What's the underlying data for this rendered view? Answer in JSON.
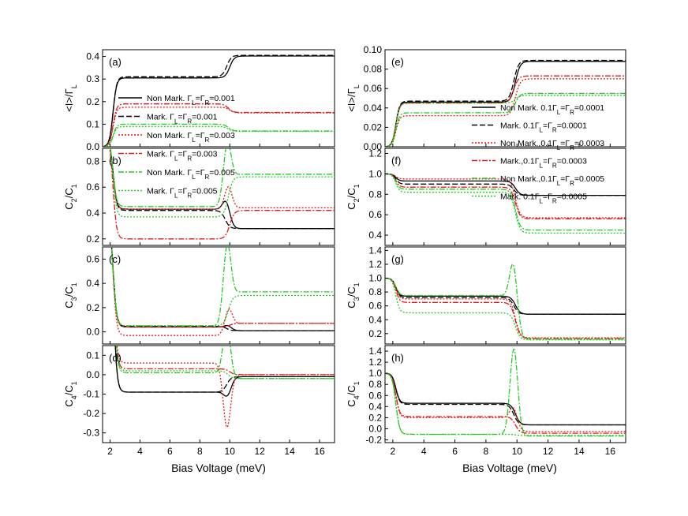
{
  "figure": {
    "colors": {
      "black": "#000000",
      "red": "#e31a1c",
      "green": "#22cc22"
    },
    "xlabel": "Bias Voltage (meV)"
  },
  "legends": {
    "left": [
      {
        "main": "Non Mark. Γ",
        "sub1": "L",
        "mid": "=Γ",
        "sub2": "R",
        "tail": "=0.001",
        "color": "#000000",
        "style": "solid"
      },
      {
        "main": "Mark. Γ",
        "sub1": "L",
        "mid": "=Γ",
        "sub2": "R",
        "tail": "=0.001",
        "color": "#000000",
        "style": "dash"
      },
      {
        "main": "Non Mark. Γ",
        "sub1": "L",
        "mid": "=Γ",
        "sub2": "R",
        "tail": "=0.003",
        "color": "#e31a1c",
        "style": "dot"
      },
      {
        "main": "Mark. Γ",
        "sub1": "L",
        "mid": "=Γ",
        "sub2": "R",
        "tail": "=0.003",
        "color": "#e31a1c",
        "style": "dashdot"
      },
      {
        "main": "Non Mark. Γ",
        "sub1": "L",
        "mid": "=Γ",
        "sub2": "R",
        "tail": "=0.005",
        "color": "#22cc22",
        "style": "dashdot"
      },
      {
        "main": "Mark. Γ",
        "sub1": "L",
        "mid": "=Γ",
        "sub2": "R",
        "tail": "=0.005",
        "color": "#22cc22",
        "style": "dot"
      }
    ],
    "right": [
      {
        "main": "Non Mark. 0.1Γ",
        "sub1": "L",
        "mid": "=Γ",
        "sub2": "R",
        "tail": "=0.0001",
        "color": "#000000",
        "style": "solid"
      },
      {
        "main": "Mark. 0.1Γ",
        "sub1": "L",
        "mid": "=Γ",
        "sub2": "R",
        "tail": "=0.0001",
        "color": "#000000",
        "style": "dash"
      },
      {
        "main": "Non Mark.,0.1Γ",
        "sub1": "L",
        "mid": "=Γ",
        "sub2": "R",
        "tail": "=0.0003",
        "color": "#e31a1c",
        "style": "dot"
      },
      {
        "main": "Mark.,0.1Γ",
        "sub1": "L",
        "mid": "=Γ",
        "sub2": "R",
        "tail": "=0.0003",
        "color": "#e31a1c",
        "style": "dashdot"
      },
      {
        "main": "Non Mark.,0.1Γ",
        "sub1": "L",
        "mid": "=Γ",
        "sub2": "R",
        "tail": "=0.0005",
        "color": "#22cc22",
        "style": "dashdot"
      },
      {
        "main": "Mark. 0.1Γ",
        "sub1": "L",
        "mid": "=Γ",
        "sub2": "R",
        "tail": "=0.0005",
        "color": "#22cc22",
        "style": "dot"
      }
    ]
  },
  "chart_data": [
    {
      "type": "line",
      "panel": "(a)",
      "ylabel": {
        "main": "<I>/Γ",
        "sub": "L"
      },
      "xlim": [
        1.5,
        17
      ],
      "ylim": [
        0,
        0.43
      ],
      "yticks": [
        "0.0",
        "0.1",
        "0.2",
        "0.3",
        "0.4"
      ],
      "ytick_values": [
        0,
        0.1,
        0.2,
        0.3,
        0.4
      ],
      "xticks": [
        2,
        4,
        6,
        8,
        10,
        12,
        14,
        16
      ],
      "series": [
        {
          "legend": 0,
          "start": 0,
          "plateau": 0.305,
          "end": 0.402,
          "jump": 10.0
        },
        {
          "legend": 1,
          "start": 0,
          "plateau": 0.31,
          "end": 0.405,
          "jump": 9.8
        },
        {
          "legend": 2,
          "start": 0,
          "plateau": 0.175,
          "end": 0.15,
          "jump": 10.0
        },
        {
          "legend": 3,
          "start": 0,
          "plateau": 0.19,
          "end": 0.152,
          "jump": 9.9
        },
        {
          "legend": 4,
          "start": 0,
          "plateau": 0.1,
          "end": 0.07,
          "jump": 9.9
        },
        {
          "legend": 5,
          "start": 0,
          "plateau": 0.09,
          "end": 0.068,
          "jump": 9.9
        }
      ]
    },
    {
      "type": "line",
      "panel": "(b)",
      "ylabel": {
        "main": "C",
        "sub": "2",
        "main2": "/C",
        "sub2": "1"
      },
      "xlim": [
        1.5,
        17
      ],
      "ylim": [
        0.15,
        0.9
      ],
      "yticks": [
        "0.2",
        "0.4",
        "0.6",
        "0.8"
      ],
      "ytick_values": [
        0.2,
        0.4,
        0.6,
        0.8
      ],
      "xticks": [
        2,
        4,
        6,
        8,
        10,
        12,
        14,
        16
      ],
      "series": [
        {
          "legend": 0,
          "start": 1.0,
          "plateau": 0.43,
          "end": 0.28,
          "jump": 9.9,
          "peak": 0.53
        },
        {
          "legend": 1,
          "start": 1.0,
          "plateau": 0.42,
          "end": 0.28,
          "jump": 9.7
        },
        {
          "legend": 2,
          "start": 1.0,
          "plateau": 0.43,
          "end": 0.44,
          "jump": 10.0,
          "peak": 0.6
        },
        {
          "legend": 3,
          "start": 1.0,
          "plateau": 0.2,
          "end": 0.42,
          "jump": 10.0
        },
        {
          "legend": 4,
          "start": 1.0,
          "plateau": 0.45,
          "end": 0.7,
          "jump": 9.9,
          "peak": 0.85
        },
        {
          "legend": 5,
          "start": 1.0,
          "plateau": 0.37,
          "end": 0.68,
          "jump": 9.9
        }
      ]
    },
    {
      "type": "line",
      "panel": "(c)",
      "ylabel": {
        "main": "C",
        "sub": "3",
        "main2": "/C",
        "sub2": "1"
      },
      "xlim": [
        1.5,
        17
      ],
      "ylim": [
        -0.1,
        0.7
      ],
      "yticks": [
        "0.0",
        "0.2",
        "0.4",
        "0.6"
      ],
      "ytick_values": [
        0,
        0.2,
        0.4,
        0.6
      ],
      "xticks": [
        2,
        4,
        6,
        8,
        10,
        12,
        14,
        16
      ],
      "series": [
        {
          "legend": 0,
          "start": 1.0,
          "plateau": 0.04,
          "end": 0.01,
          "jump": 10.0,
          "peak": 0.06
        },
        {
          "legend": 1,
          "start": 1.0,
          "plateau": 0.045,
          "end": 0.01,
          "jump": 9.8
        },
        {
          "legend": 2,
          "start": 1.0,
          "plateau": -0.03,
          "end": 0.07,
          "jump": 10.0,
          "peak": 0.15
        },
        {
          "legend": 3,
          "start": 1.0,
          "plateau": 0.04,
          "end": 0.07,
          "jump": 10.0
        },
        {
          "legend": 4,
          "start": 1.0,
          "plateau": 0.05,
          "end": 0.33,
          "jump": 9.9,
          "peak": 0.62
        },
        {
          "legend": 5,
          "start": 1.0,
          "plateau": 0.05,
          "end": 0.3,
          "jump": 9.9
        }
      ]
    },
    {
      "type": "line",
      "panel": "(d)",
      "ylabel": {
        "main": "C",
        "sub": "4",
        "main2": "/C",
        "sub2": "1"
      },
      "xlim": [
        1.5,
        17
      ],
      "ylim": [
        -0.35,
        0.15
      ],
      "yticks": [
        "0.1",
        "0.0",
        "-0.1",
        "-0.2",
        "-0.3"
      ],
      "ytick_values": [
        0.1,
        0,
        -0.1,
        -0.2,
        -0.3
      ],
      "xticks": [
        2,
        4,
        6,
        8,
        10,
        12,
        14,
        16
      ],
      "series": [
        {
          "legend": 0,
          "start": 1.0,
          "plateau": -0.09,
          "end": -0.01,
          "jump": 10.0,
          "peak": -0.13
        },
        {
          "legend": 1,
          "start": 1.0,
          "plateau": -0.09,
          "end": -0.01,
          "jump": 9.8
        },
        {
          "legend": 2,
          "start": 1.0,
          "plateau": 0.06,
          "end": 0.0,
          "jump": 9.9,
          "peak": -0.25
        },
        {
          "legend": 3,
          "start": 1.0,
          "plateau": 0.03,
          "end": 0.0,
          "jump": 10.0
        },
        {
          "legend": 4,
          "start": 1.0,
          "plateau": 0.01,
          "end": -0.02,
          "jump": 9.9,
          "peak": 0.26
        },
        {
          "legend": 5,
          "start": 1.0,
          "plateau": 0.02,
          "end": -0.02,
          "jump": 9.9
        }
      ]
    },
    {
      "type": "line",
      "panel": "(e)",
      "ylabel": {
        "main": "<I>/Γ",
        "sub": "L"
      },
      "xlim": [
        1.5,
        17
      ],
      "ylim": [
        0,
        0.1
      ],
      "yticks": [
        "0.00",
        "0.02",
        "0.04",
        "0.06",
        "0.08",
        "0.10"
      ],
      "ytick_values": [
        0,
        0.02,
        0.04,
        0.06,
        0.08,
        0.1
      ],
      "xticks": [
        2,
        4,
        6,
        8,
        10,
        12,
        14,
        16
      ],
      "series": [
        {
          "legend": 0,
          "start": 0,
          "plateau": 0.046,
          "end": 0.088,
          "jump": 9.9
        },
        {
          "legend": 1,
          "start": 0,
          "plateau": 0.047,
          "end": 0.089,
          "jump": 9.8
        },
        {
          "legend": 2,
          "start": 0,
          "plateau": 0.032,
          "end": 0.07,
          "jump": 9.9
        },
        {
          "legend": 3,
          "start": 0,
          "plateau": 0.045,
          "end": 0.073,
          "jump": 9.8
        },
        {
          "legend": 4,
          "start": 0,
          "plateau": 0.035,
          "end": 0.055,
          "jump": 9.9
        },
        {
          "legend": 5,
          "start": 0,
          "plateau": 0.045,
          "end": 0.053,
          "jump": 9.9
        }
      ]
    },
    {
      "type": "line",
      "panel": "(f)",
      "ylabel": {
        "main": "C",
        "sub": "2",
        "main2": "/C",
        "sub2": "1"
      },
      "xlim": [
        1.5,
        17
      ],
      "ylim": [
        0.3,
        1.25
      ],
      "yticks": [
        "0.4",
        "0.6",
        "0.8",
        "1.0",
        "1.2"
      ],
      "ytick_values": [
        0.4,
        0.6,
        0.8,
        1.0,
        1.2
      ],
      "xticks": [
        2,
        4,
        6,
        8,
        10,
        12,
        14,
        16
      ],
      "series": [
        {
          "legend": 0,
          "start": 1.0,
          "plateau": 0.93,
          "end": 0.79,
          "jump": 9.9
        },
        {
          "legend": 1,
          "start": 1.0,
          "plateau": 0.9,
          "end": 0.79,
          "jump": 9.8
        },
        {
          "legend": 2,
          "start": 1.0,
          "plateau": 0.95,
          "end": 0.57,
          "jump": 9.9
        },
        {
          "legend": 3,
          "start": 1.0,
          "plateau": 0.87,
          "end": 0.56,
          "jump": 9.9
        },
        {
          "legend": 4,
          "start": 1.0,
          "plateau": 0.85,
          "end": 0.45,
          "jump": 9.9
        },
        {
          "legend": 5,
          "start": 1.0,
          "plateau": 0.82,
          "end": 0.42,
          "jump": 9.9
        }
      ]
    },
    {
      "type": "line",
      "panel": "(g)",
      "ylabel": {
        "main": "C",
        "sub": "3",
        "main2": "/C",
        "sub2": "1"
      },
      "xlim": [
        1.5,
        17
      ],
      "ylim": [
        0.05,
        1.45
      ],
      "yticks": [
        "0.2",
        "0.4",
        "0.6",
        "0.8",
        "1.0",
        "1.2",
        "1.4"
      ],
      "ytick_values": [
        0.2,
        0.4,
        0.6,
        0.8,
        1.0,
        1.2,
        1.4
      ],
      "xticks": [
        2,
        4,
        6,
        8,
        10,
        12,
        14,
        16
      ],
      "series": [
        {
          "legend": 0,
          "start": 1.0,
          "plateau": 0.74,
          "end": 0.48,
          "jump": 9.9
        },
        {
          "legend": 1,
          "start": 1.0,
          "plateau": 0.72,
          "end": 0.48,
          "jump": 9.8
        },
        {
          "legend": 2,
          "start": 1.0,
          "plateau": 0.7,
          "end": 0.14,
          "jump": 9.9
        },
        {
          "legend": 3,
          "start": 1.0,
          "plateau": 0.65,
          "end": 0.13,
          "jump": 9.9
        },
        {
          "legend": 4,
          "start": 1.0,
          "plateau": 0.75,
          "end": 0.12,
          "jump": 9.9,
          "peak": 1.38
        },
        {
          "legend": 5,
          "start": 1.0,
          "plateau": 0.5,
          "end": 0.11,
          "jump": 9.9
        }
      ]
    },
    {
      "type": "line",
      "panel": "(h)",
      "ylabel": {
        "main": "C",
        "sub": "4",
        "main2": "/C",
        "sub2": "1"
      },
      "xlim": [
        1.5,
        17
      ],
      "ylim": [
        -0.25,
        1.5
      ],
      "yticks": [
        "-0.2",
        "0.0",
        "0.2",
        "0.4",
        "0.6",
        "0.8",
        "1.0",
        "1.2",
        "1.4"
      ],
      "ytick_values": [
        -0.2,
        0,
        0.2,
        0.4,
        0.6,
        0.8,
        1.0,
        1.2,
        1.4
      ],
      "xticks": [
        2,
        4,
        6,
        8,
        10,
        12,
        14,
        16
      ],
      "series": [
        {
          "legend": 0,
          "start": 1.0,
          "plateau": 0.46,
          "end": 0.07,
          "jump": 9.9
        },
        {
          "legend": 1,
          "start": 1.0,
          "plateau": 0.44,
          "end": 0.07,
          "jump": 9.8
        },
        {
          "legend": 2,
          "start": 1.0,
          "plateau": 0.2,
          "end": -0.05,
          "jump": 9.9,
          "peak": 0.45
        },
        {
          "legend": 3,
          "start": 1.0,
          "plateau": 0.22,
          "end": -0.08,
          "jump": 9.9
        },
        {
          "legend": 4,
          "start": 1.0,
          "plateau": -0.1,
          "end": -0.13,
          "jump": 9.9,
          "peak": 1.45
        },
        {
          "legend": 5,
          "start": 1.0,
          "plateau": -0.1,
          "end": -0.12,
          "jump": 9.9
        }
      ]
    }
  ]
}
